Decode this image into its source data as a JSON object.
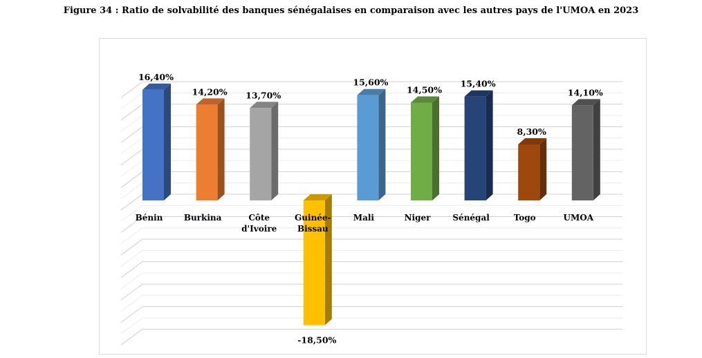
{
  "chart_data": {
    "type": "bar",
    "title": "Figure 34 : Ratio de solvabilité des banques sénégalaises en comparaison avec les autres pays de l'UMOA en 2023",
    "categories": [
      [
        "Bénin"
      ],
      [
        "Burkina"
      ],
      [
        "Côte",
        "d'Ivoire"
      ],
      [
        "Guinée-",
        "Bissau"
      ],
      [
        "Mali"
      ],
      [
        "Niger"
      ],
      [
        "Sénégal"
      ],
      [
        "Togo"
      ],
      [
        "UMOA"
      ]
    ],
    "values": [
      16.4,
      14.2,
      13.7,
      -18.5,
      15.6,
      14.5,
      15.4,
      8.3,
      14.1
    ],
    "data_labels": [
      "16,40%",
      "14,20%",
      "13,70%",
      "-18,50%",
      "15,60%",
      "14,50%",
      "15,40%",
      "8,30%",
      "14,10%"
    ],
    "colors": [
      "#4472C4",
      "#ED7D31",
      "#A5A5A5",
      "#FFC000",
      "#5B9BD5",
      "#70AD47",
      "#264478",
      "#9E480E",
      "#636363"
    ],
    "xlabel": "",
    "ylabel": "",
    "ylim": [
      -20,
      20
    ],
    "grid": true,
    "legend": "none",
    "style": "3d-column"
  }
}
